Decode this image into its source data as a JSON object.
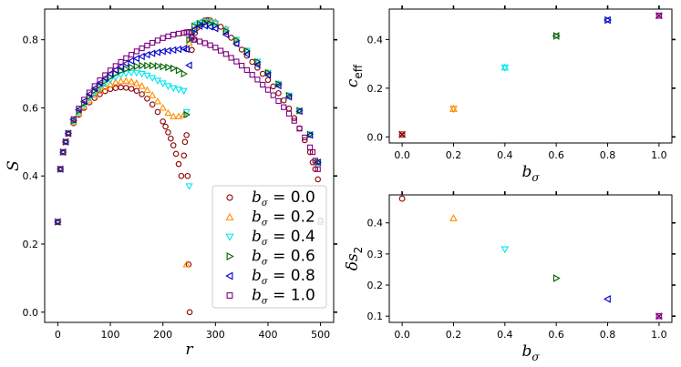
{
  "chart_data": [
    {
      "type": "scatter",
      "id": "entropy-vs-r",
      "xlabel": "r",
      "ylabel": "S",
      "xlim": [
        -25,
        525
      ],
      "ylim": [
        -0.03,
        0.89
      ],
      "xticks": [
        0,
        100,
        200,
        300,
        400,
        500
      ],
      "yticks": [
        0.0,
        0.2,
        0.4,
        0.6,
        0.8
      ],
      "ytick_labels": [
        "0.0",
        "0.2",
        "0.4",
        "0.6",
        "0.8"
      ],
      "legend_position": "lower-right",
      "series": [
        {
          "name": "b_σ = 0.0",
          "marker": "circle",
          "color": "#8b0000",
          "legend": {
            "var": "b",
            "sub": "σ",
            "value": "0.0"
          },
          "x": [
            0,
            5,
            10,
            15,
            20,
            30,
            40,
            50,
            60,
            70,
            80,
            90,
            100,
            110,
            120,
            130,
            140,
            150,
            160,
            170,
            180,
            190,
            200,
            205,
            210,
            215,
            220,
            225,
            230,
            235,
            240,
            242,
            245,
            247,
            249,
            251,
            255,
            259,
            261,
            265,
            270,
            275,
            280,
            285,
            290,
            300,
            310,
            320,
            330,
            340,
            350,
            360,
            370,
            380,
            390,
            400,
            410,
            420,
            430,
            440,
            450,
            460,
            470,
            480,
            485,
            490,
            495,
            500
          ],
          "y": [
            0.265,
            0.42,
            0.47,
            0.5,
            0.525,
            0.555,
            0.58,
            0.6,
            0.616,
            0.629,
            0.64,
            0.649,
            0.655,
            0.658,
            0.66,
            0.659,
            0.656,
            0.65,
            0.64,
            0.627,
            0.61,
            0.588,
            0.56,
            0.545,
            0.528,
            0.51,
            0.49,
            0.465,
            0.435,
            0.4,
            0.46,
            0.5,
            0.52,
            0.4,
            0.14,
            0.0,
            0.77,
            0.8,
            0.82,
            0.835,
            0.845,
            0.852,
            0.857,
            0.858,
            0.857,
            0.85,
            0.838,
            0.823,
            0.806,
            0.789,
            0.771,
            0.753,
            0.735,
            0.718,
            0.7,
            0.682,
            0.663,
            0.643,
            0.622,
            0.598,
            0.57,
            0.54,
            0.505,
            0.47,
            0.44,
            0.42,
            0.39,
            0.27
          ]
        },
        {
          "name": "b_σ = 0.2",
          "marker": "triangle-up",
          "color": "#ff8c00",
          "legend": {
            "var": "b",
            "sub": "σ",
            "value": "0.2"
          },
          "x": [
            0,
            5,
            10,
            15,
            20,
            30,
            40,
            50,
            60,
            70,
            80,
            90,
            100,
            110,
            120,
            130,
            140,
            150,
            160,
            170,
            180,
            190,
            200,
            210,
            220,
            230,
            240,
            245,
            250,
            255,
            260,
            265,
            270,
            280,
            290,
            300,
            320,
            340,
            360,
            380,
            400,
            420,
            440,
            460,
            480,
            495
          ],
          "y": [
            0.265,
            0.42,
            0.47,
            0.5,
            0.525,
            0.557,
            0.583,
            0.604,
            0.622,
            0.637,
            0.65,
            0.661,
            0.669,
            0.675,
            0.678,
            0.679,
            0.677,
            0.672,
            0.664,
            0.652,
            0.637,
            0.619,
            0.6,
            0.585,
            0.575,
            0.575,
            0.58,
            0.14,
            0.79,
            0.81,
            0.83,
            0.84,
            0.848,
            0.855,
            0.856,
            0.852,
            0.832,
            0.8,
            0.767,
            0.735,
            0.703,
            0.67,
            0.635,
            0.59,
            0.52,
            0.44
          ]
        },
        {
          "name": "b_σ = 0.4",
          "marker": "triangle-down",
          "color": "#00e5ee",
          "legend": {
            "var": "b",
            "sub": "σ",
            "value": "0.4"
          },
          "x": [
            0,
            5,
            10,
            15,
            20,
            30,
            40,
            50,
            60,
            70,
            80,
            90,
            100,
            110,
            120,
            130,
            140,
            150,
            160,
            170,
            180,
            190,
            200,
            210,
            220,
            230,
            240,
            245,
            250,
            255,
            260,
            265,
            270,
            280,
            290,
            300,
            320,
            340,
            360,
            380,
            400,
            420,
            440,
            460,
            480,
            495
          ],
          "y": [
            0.265,
            0.42,
            0.47,
            0.5,
            0.525,
            0.56,
            0.587,
            0.609,
            0.628,
            0.645,
            0.659,
            0.672,
            0.682,
            0.69,
            0.697,
            0.701,
            0.703,
            0.703,
            0.7,
            0.695,
            0.688,
            0.68,
            0.672,
            0.664,
            0.658,
            0.654,
            0.65,
            0.588,
            0.37,
            0.8,
            0.83,
            0.845,
            0.85,
            0.853,
            0.852,
            0.848,
            0.83,
            0.8,
            0.768,
            0.736,
            0.703,
            0.67,
            0.636,
            0.592,
            0.522,
            0.44
          ]
        },
        {
          "name": "b_σ = 0.6",
          "marker": "triangle-right",
          "color": "#006400",
          "legend": {
            "var": "b",
            "sub": "σ",
            "value": "0.6"
          },
          "x": [
            0,
            5,
            10,
            15,
            20,
            30,
            40,
            50,
            60,
            70,
            80,
            90,
            100,
            110,
            120,
            130,
            140,
            150,
            160,
            170,
            180,
            190,
            200,
            210,
            220,
            230,
            240,
            245,
            250,
            255,
            260,
            270,
            280,
            290,
            300,
            320,
            340,
            360,
            380,
            400,
            420,
            440,
            460,
            480,
            495
          ],
          "y": [
            0.265,
            0.42,
            0.47,
            0.5,
            0.525,
            0.562,
            0.591,
            0.614,
            0.634,
            0.651,
            0.666,
            0.679,
            0.69,
            0.7,
            0.708,
            0.714,
            0.719,
            0.722,
            0.724,
            0.724,
            0.724,
            0.723,
            0.721,
            0.719,
            0.716,
            0.71,
            0.7,
            0.58,
            0.8,
            0.82,
            0.84,
            0.846,
            0.849,
            0.847,
            0.842,
            0.826,
            0.798,
            0.767,
            0.735,
            0.703,
            0.67,
            0.636,
            0.592,
            0.522,
            0.44
          ]
        },
        {
          "name": "b_σ = 0.8",
          "marker": "triangle-left",
          "color": "#0000cd",
          "legend": {
            "var": "b",
            "sub": "σ",
            "value": "0.8"
          },
          "x": [
            0,
            5,
            10,
            15,
            20,
            30,
            40,
            50,
            60,
            70,
            80,
            90,
            100,
            110,
            120,
            130,
            140,
            150,
            160,
            170,
            180,
            190,
            200,
            210,
            220,
            230,
            240,
            245,
            250,
            255,
            260,
            270,
            280,
            290,
            300,
            320,
            340,
            360,
            380,
            400,
            420,
            440,
            460,
            480,
            495
          ],
          "y": [
            0.265,
            0.42,
            0.47,
            0.5,
            0.525,
            0.565,
            0.595,
            0.619,
            0.64,
            0.657,
            0.673,
            0.687,
            0.7,
            0.711,
            0.721,
            0.73,
            0.738,
            0.745,
            0.751,
            0.756,
            0.76,
            0.763,
            0.766,
            0.768,
            0.77,
            0.772,
            0.774,
            0.772,
            0.725,
            0.81,
            0.83,
            0.84,
            0.841,
            0.838,
            0.833,
            0.815,
            0.788,
            0.758,
            0.727,
            0.697,
            0.665,
            0.632,
            0.59,
            0.52,
            0.44
          ]
        },
        {
          "name": "b_σ = 1.0",
          "marker": "square",
          "color": "#800080",
          "legend": {
            "var": "b",
            "sub": "σ",
            "value": "1.0"
          },
          "x": [
            0,
            5,
            10,
            15,
            20,
            30,
            40,
            50,
            60,
            70,
            80,
            90,
            100,
            110,
            120,
            130,
            140,
            150,
            160,
            170,
            180,
            190,
            200,
            210,
            220,
            230,
            240,
            245,
            250,
            255,
            260,
            270,
            280,
            290,
            300,
            310,
            320,
            330,
            340,
            350,
            360,
            370,
            380,
            390,
            400,
            410,
            420,
            430,
            440,
            450,
            460,
            470,
            480,
            485,
            490,
            495,
            500
          ],
          "y": [
            0.265,
            0.42,
            0.47,
            0.5,
            0.525,
            0.567,
            0.598,
            0.624,
            0.645,
            0.664,
            0.681,
            0.696,
            0.71,
            0.723,
            0.735,
            0.746,
            0.756,
            0.766,
            0.775,
            0.783,
            0.791,
            0.798,
            0.805,
            0.81,
            0.815,
            0.818,
            0.82,
            0.822,
            0.823,
            0.806,
            0.8,
            0.795,
            0.79,
            0.784,
            0.777,
            0.768,
            0.758,
            0.747,
            0.736,
            0.724,
            0.711,
            0.697,
            0.683,
            0.668,
            0.653,
            0.637,
            0.62,
            0.602,
            0.583,
            0.562,
            0.539,
            0.513,
            0.484,
            0.47,
            0.445,
            0.42,
            0.265
          ]
        }
      ]
    },
    {
      "type": "scatter",
      "id": "ceff-vs-bsigma",
      "xlabel": "b_σ",
      "ylabel": "c_eff",
      "xlim": [
        -0.05,
        1.05
      ],
      "ylim": [
        -0.025,
        0.525
      ],
      "xticks": [
        0.0,
        0.2,
        0.4,
        0.6,
        0.8,
        1.0
      ],
      "xtick_labels": [
        "0.0",
        "0.2",
        "0.4",
        "0.6",
        "0.8",
        "1.0"
      ],
      "yticks": [
        0.0,
        0.2,
        0.4
      ],
      "ytick_labels": [
        "0.0",
        "0.2",
        "0.4"
      ],
      "points": [
        {
          "x": 0.0,
          "y": 0.01,
          "color": "#8b0000",
          "markers": [
            "circle",
            "x"
          ]
        },
        {
          "x": 0.2,
          "y": 0.115,
          "color": "#ff8c00",
          "markers": [
            "triangle-up",
            "triangle-down"
          ]
        },
        {
          "x": 0.4,
          "y": 0.285,
          "color": "#00e5ee",
          "markers": [
            "triangle-down",
            "triangle-up"
          ]
        },
        {
          "x": 0.6,
          "y": 0.415,
          "color": "#006400",
          "markers": [
            "triangle-right",
            "triangle-left"
          ]
        },
        {
          "x": 0.8,
          "y": 0.48,
          "color": "#0000cd",
          "markers": [
            "triangle-left",
            "triangle-right"
          ]
        },
        {
          "x": 1.0,
          "y": 0.498,
          "color": "#800080",
          "markers": [
            "square",
            "x"
          ]
        }
      ]
    },
    {
      "type": "scatter",
      "id": "deltas2-vs-bsigma",
      "xlabel": "b_σ",
      "ylabel": "δs_2",
      "xlim": [
        -0.05,
        1.05
      ],
      "ylim": [
        0.08,
        0.49
      ],
      "xticks": [
        0.0,
        0.2,
        0.4,
        0.6,
        0.8,
        1.0
      ],
      "xtick_labels": [
        "0.0",
        "0.2",
        "0.4",
        "0.6",
        "0.8",
        "1.0"
      ],
      "yticks": [
        0.1,
        0.2,
        0.3,
        0.4
      ],
      "ytick_labels": [
        "0.1",
        "0.2",
        "0.3",
        "0.4"
      ],
      "points": [
        {
          "x": 0.0,
          "y": 0.478,
          "color": "#8b0000",
          "markers": [
            "circle"
          ]
        },
        {
          "x": 0.2,
          "y": 0.415,
          "color": "#ff8c00",
          "markers": [
            "triangle-up"
          ]
        },
        {
          "x": 0.4,
          "y": 0.315,
          "color": "#00e5ee",
          "markers": [
            "triangle-down"
          ]
        },
        {
          "x": 0.6,
          "y": 0.222,
          "color": "#006400",
          "markers": [
            "triangle-right"
          ]
        },
        {
          "x": 0.8,
          "y": 0.155,
          "color": "#0000cd",
          "markers": [
            "triangle-left"
          ]
        },
        {
          "x": 1.0,
          "y": 0.1,
          "color": "#800080",
          "markers": [
            "square",
            "x"
          ]
        }
      ]
    }
  ]
}
